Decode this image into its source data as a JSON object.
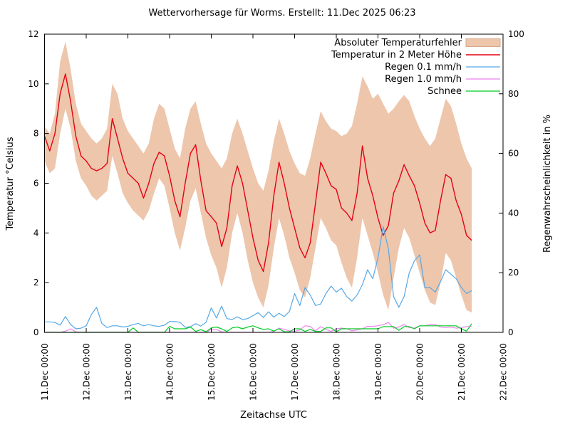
{
  "title": "Wettervorhersage für Worms. Erstellt: 11.Dec 2025 06:23",
  "axes": {
    "x_label": "Zeitachse UTC",
    "y_left_label": "Temperatur °Celsius",
    "y_right_label": "Regenwahrscheinlichkeit in %",
    "x_tick_labels": [
      "11.Dec 00:00",
      "12.Dec 00:00",
      "13.Dec 00:00",
      "14.Dec 00:00",
      "15.Dec 00:00",
      "16.Dec 00:00",
      "17.Dec 00:00",
      "18.Dec 00:00",
      "19.Dec 00:00",
      "20.Dec 00:00",
      "21.Dec 00:00",
      "22.Dec 00:00"
    ],
    "y_left_ticks": [
      0,
      2,
      4,
      6,
      8,
      10,
      12
    ],
    "y_right_ticks": [
      0,
      20,
      40,
      60,
      80,
      100
    ]
  },
  "colors": {
    "band": "#edc6ac",
    "band_edge": "#d8a98c",
    "temperature": "#e60012",
    "rain01": "#56a8e6",
    "rain10": "#ee85ee",
    "snow": "#00cc22",
    "text": "#000000"
  },
  "legend": [
    {
      "label": "Absoluter Temperaturfehler",
      "type": "band",
      "color": "#edc6ac"
    },
    {
      "label": "Temperatur in 2 Meter Höhe",
      "type": "line",
      "color": "#e60012"
    },
    {
      "label": "Regen 0.1 mm/h",
      "type": "line",
      "color": "#56a8e6"
    },
    {
      "label": "Regen 1.0 mm/h",
      "type": "line",
      "color": "#ee85ee"
    },
    {
      "label": "Schnee",
      "type": "line",
      "color": "#00cc22"
    }
  ],
  "chart_data": {
    "type": "line",
    "title": "Wettervorhersage für Worms. Erstellt: 11.Dec 2025 06:23",
    "xlabel": "Zeitachse UTC",
    "ylabel_left": "Temperatur °Celsius",
    "ylabel_right": "Regenwahrscheinlichkeit in %",
    "x_unit": "hours since 11.Dec 2025 00:00 UTC",
    "x_start_hours": 0,
    "x_step_hours": 3,
    "x_axis_range_hours": [
      0,
      264
    ],
    "ylim_left": [
      0,
      12
    ],
    "ylim_right": [
      0,
      100
    ],
    "grid": false,
    "legend_position": "top-right-inside",
    "series": [
      {
        "name": "Absoluter Temperaturfehler (Untergrenze)",
        "axis": "left",
        "role": "band-min",
        "values": [
          6.9,
          6.4,
          6.6,
          8.0,
          9.0,
          8.2,
          6.9,
          6.2,
          5.9,
          5.5,
          5.3,
          5.5,
          5.7,
          7.1,
          6.4,
          5.6,
          5.2,
          4.9,
          4.7,
          4.5,
          4.9,
          5.6,
          6.2,
          5.9,
          5.0,
          4.0,
          3.3,
          4.2,
          5.3,
          5.8,
          4.8,
          3.8,
          3.1,
          2.6,
          1.8,
          2.6,
          4.0,
          4.8,
          4.0,
          2.9,
          2.0,
          1.4,
          1.0,
          1.9,
          3.4,
          4.6,
          3.9,
          3.0,
          2.4,
          1.7,
          1.4,
          2.2,
          3.4,
          4.6,
          4.2,
          3.7,
          3.5,
          2.8,
          2.2,
          1.8,
          3.0,
          4.6,
          3.9,
          3.2,
          2.4,
          1.5,
          0.9,
          2.2,
          3.4,
          4.2,
          3.8,
          3.1,
          2.4,
          1.7,
          1.2,
          1.1,
          2.0,
          3.2,
          2.9,
          2.2,
          1.5,
          0.9,
          0.8
        ]
      },
      {
        "name": "Absoluter Temperaturfehler (Obergrenze)",
        "axis": "left",
        "role": "band-max",
        "values": [
          8.3,
          8.0,
          8.8,
          10.9,
          11.7,
          10.6,
          9.2,
          8.4,
          8.1,
          7.8,
          7.6,
          7.8,
          8.2,
          10.0,
          9.6,
          8.6,
          8.1,
          7.8,
          7.5,
          7.2,
          7.6,
          8.6,
          9.2,
          9.0,
          8.2,
          7.4,
          7.0,
          8.2,
          9.0,
          9.3,
          8.4,
          7.6,
          7.2,
          6.9,
          6.6,
          7.0,
          8.0,
          8.6,
          8.0,
          7.3,
          6.6,
          6.0,
          5.7,
          6.5,
          7.7,
          8.6,
          8.0,
          7.3,
          6.8,
          6.4,
          6.3,
          7.0,
          8.0,
          8.9,
          8.5,
          8.2,
          8.1,
          7.9,
          8.0,
          8.3,
          9.2,
          10.3,
          9.9,
          9.4,
          9.6,
          9.2,
          8.8,
          9.0,
          9.3,
          9.55,
          9.3,
          8.7,
          8.2,
          7.8,
          7.5,
          7.8,
          8.6,
          9.4,
          9.1,
          8.4,
          7.6,
          7.0,
          6.6
        ]
      },
      {
        "name": "Temperatur in 2 Meter Höhe",
        "axis": "left",
        "role": "line",
        "values": [
          7.9,
          7.3,
          8.0,
          9.6,
          10.4,
          9.3,
          7.9,
          7.1,
          6.9,
          6.6,
          6.5,
          6.6,
          6.8,
          8.6,
          7.8,
          7.0,
          6.4,
          6.2,
          6.0,
          5.4,
          6.0,
          6.8,
          7.25,
          7.1,
          6.3,
          5.3,
          4.65,
          6.0,
          7.2,
          7.55,
          6.1,
          4.9,
          4.65,
          4.4,
          3.45,
          4.2,
          5.9,
          6.7,
          6.0,
          4.9,
          3.8,
          2.9,
          2.45,
          3.6,
          5.5,
          6.85,
          6.0,
          5.0,
          4.2,
          3.4,
          3.0,
          3.6,
          5.2,
          6.85,
          6.4,
          5.9,
          5.75,
          5.0,
          4.8,
          4.5,
          5.6,
          7.5,
          6.2,
          5.5,
          4.6,
          3.9,
          4.3,
          5.6,
          6.1,
          6.75,
          6.3,
          5.9,
          5.2,
          4.4,
          4.0,
          4.1,
          5.3,
          6.35,
          6.2,
          5.3,
          4.75,
          3.9,
          3.7
        ]
      },
      {
        "name": "Regen 0.1 mm/h",
        "axis": "right",
        "role": "line",
        "values": [
          3.5,
          3.5,
          3.3,
          2.4,
          5.3,
          2.6,
          1.2,
          1.4,
          2.2,
          6.0,
          8.4,
          3.0,
          1.6,
          2.2,
          2.2,
          1.8,
          2.0,
          2.6,
          3.0,
          2.2,
          2.6,
          2.2,
          2.0,
          2.4,
          3.6,
          3.6,
          3.4,
          1.7,
          1.9,
          2.9,
          2.1,
          3.4,
          8.2,
          4.8,
          8.8,
          4.6,
          4.3,
          5.2,
          4.3,
          4.6,
          5.6,
          6.6,
          5.0,
          6.9,
          5.1,
          6.4,
          5.3,
          7.0,
          13.0,
          9.0,
          15.0,
          12.5,
          9.0,
          9.5,
          13.0,
          15.5,
          13.5,
          14.8,
          12.0,
          10.5,
          12.5,
          16.0,
          21.0,
          18.0,
          25.0,
          35.5,
          28.0,
          12.0,
          8.4,
          12.0,
          20.0,
          24.0,
          26.0,
          15.0,
          15.0,
          13.5,
          17.0,
          21.0,
          19.5,
          18.0,
          15.0,
          13.0,
          14.0
        ]
      },
      {
        "name": "Regen 1.0 mm/h",
        "axis": "right",
        "role": "line",
        "values": [
          0,
          0,
          0,
          0,
          0.4,
          1.2,
          0.2,
          0,
          0,
          0,
          0,
          0,
          0,
          0,
          0,
          0,
          0,
          0,
          0,
          0,
          0,
          0,
          0,
          0,
          0,
          0,
          0,
          0,
          0,
          0,
          0,
          0,
          1.0,
          1.0,
          0.2,
          0,
          0,
          0,
          0,
          0,
          0,
          0,
          0,
          0,
          0.3,
          1.4,
          1.0,
          0.5,
          0.3,
          0.8,
          2.2,
          2.0,
          0.5,
          1.9,
          1.0,
          0.3,
          1.2,
          1.4,
          1.2,
          0.5,
          0.8,
          1.2,
          2.0,
          2.0,
          2.2,
          2.6,
          3.3,
          1.4,
          1.8,
          2.6,
          1.6,
          1.4,
          2.2,
          2.2,
          2.6,
          2.6,
          1.8,
          1.6,
          1.8,
          1.4,
          1.6,
          1.9,
          2.0
        ]
      },
      {
        "name": "Schnee",
        "axis": "right",
        "role": "line",
        "values": [
          0,
          0,
          0,
          0,
          0,
          0,
          0,
          0,
          0,
          0,
          0,
          0,
          0,
          0,
          0,
          0,
          0,
          1.5,
          0,
          0,
          0,
          0,
          0,
          0,
          2.0,
          1.2,
          1.2,
          1.2,
          1.8,
          0.3,
          0.9,
          0.2,
          1.5,
          1.8,
          1.2,
          0.3,
          1.5,
          1.8,
          1.2,
          1.8,
          2.2,
          1.5,
          1.0,
          1.2,
          0.4,
          1.2,
          0.2,
          0.2,
          1.2,
          1.2,
          0.3,
          1.0,
          0.3,
          0.3,
          1.5,
          1.5,
          0.2,
          1.2,
          1.2,
          1.2,
          1.2,
          1.2,
          1.2,
          1.2,
          1.2,
          1.9,
          1.9,
          1.9,
          0.7,
          1.9,
          1.9,
          1.2,
          2.2,
          2.2,
          2.2,
          2.2,
          2.2,
          2.2,
          2.2,
          2.2,
          1.2,
          0.4,
          2.9
        ]
      }
    ]
  }
}
